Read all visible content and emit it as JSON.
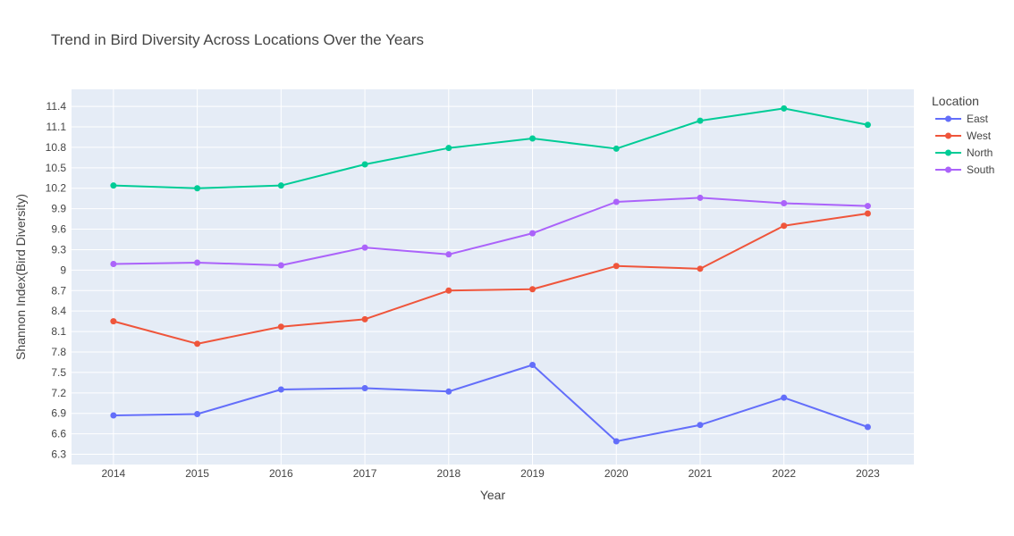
{
  "chart_data": {
    "type": "line",
    "title": "Trend in Bird Diversity Across Locations Over the Years",
    "xlabel": "Year",
    "ylabel": "Shannon Index(Bird Diversity)",
    "x": [
      "2014",
      "2015",
      "2016",
      "2017",
      "2018",
      "2019",
      "2020",
      "2021",
      "2022",
      "2023"
    ],
    "xlim": [
      2013.5,
      2023.55
    ],
    "ylim": [
      6.15,
      11.65
    ],
    "yticks": [
      "6.3",
      "6.6",
      "6.9",
      "7.2",
      "7.5",
      "7.8",
      "8.1",
      "8.4",
      "8.7",
      "9",
      "9.3",
      "9.6",
      "9.9",
      "10.2",
      "10.5",
      "10.8",
      "11.1",
      "11.4"
    ],
    "grid": true,
    "legend": {
      "title": "Location",
      "position": "top-right"
    },
    "series": [
      {
        "name": "East",
        "color": "#636efa",
        "values": [
          6.87,
          6.89,
          7.25,
          7.27,
          7.22,
          7.61,
          6.49,
          6.73,
          7.13,
          6.7
        ]
      },
      {
        "name": "West",
        "color": "#ef553b",
        "values": [
          8.25,
          7.92,
          8.17,
          8.28,
          8.7,
          8.72,
          9.06,
          9.02,
          9.65,
          9.83
        ]
      },
      {
        "name": "North",
        "color": "#00cc96",
        "values": [
          10.24,
          10.2,
          10.24,
          10.55,
          10.79,
          10.93,
          10.78,
          11.19,
          11.37,
          11.13
        ]
      },
      {
        "name": "South",
        "color": "#ab63fa",
        "values": [
          9.09,
          9.11,
          9.07,
          9.33,
          9.23,
          9.54,
          10.0,
          10.06,
          9.98,
          9.94
        ]
      }
    ]
  }
}
